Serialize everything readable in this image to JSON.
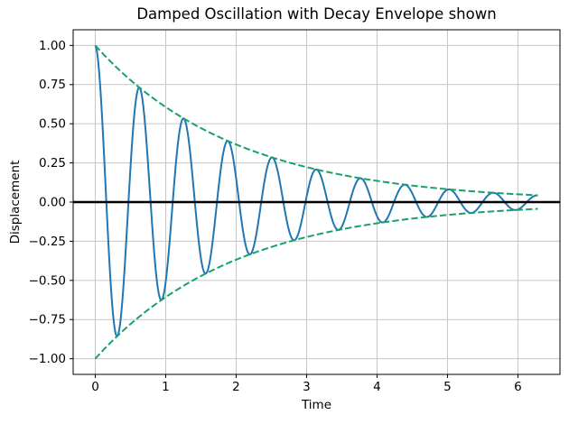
{
  "chart_data": {
    "type": "line",
    "title": "Damped Oscillation with Decay Envelope shown",
    "xlabel": "Time",
    "ylabel": "Displacement",
    "xlim": [
      -0.314,
      6.597
    ],
    "ylim": [
      -1.1,
      1.1
    ],
    "xticks": [
      0,
      1,
      2,
      3,
      4,
      5,
      6
    ],
    "yticks": [
      -1.0,
      -0.75,
      -0.5,
      -0.25,
      0.0,
      0.25,
      0.5,
      0.75,
      1.0
    ],
    "grid": true,
    "grid_color": "#c6c6c6",
    "spine_color": "#000000",
    "background": "#ffffff",
    "legend": "none",
    "series": [
      {
        "name": "damped-oscillation",
        "fn": "damped_cosine",
        "formula": "exp(-0.5*t)*cos(10*t)",
        "amplitude": 1.0,
        "decay_rate": 0.5,
        "angular_frequency": 10,
        "t_start": 0,
        "t_end": 6.2832,
        "color": "#1f77b4",
        "line_style": "solid",
        "line_width": 2,
        "key_points": [
          [
            0,
            1.0
          ],
          [
            0.3142,
            -0.8547
          ],
          [
            0.6283,
            0.7304
          ],
          [
            1.2566,
            0.5335
          ],
          [
            1.885,
            0.3897
          ],
          [
            2.5133,
            0.2846
          ],
          [
            3.1416,
            0.2079
          ],
          [
            3.7699,
            0.1518
          ],
          [
            4.3982,
            0.1109
          ],
          [
            5.0265,
            0.081
          ],
          [
            5.655,
            0.0592
          ],
          [
            6.2832,
            0.0432
          ]
        ]
      },
      {
        "name": "upper-envelope",
        "fn": "exponential_decay",
        "formula": "exp(-0.5*t)",
        "amplitude": 1.0,
        "decay_rate": 0.5,
        "t_start": 0,
        "t_end": 6.2832,
        "color": "#1aa06b",
        "line_style": "dashed",
        "line_width": 2,
        "key_points": [
          [
            0,
            1.0
          ],
          [
            1,
            0.6065
          ],
          [
            2,
            0.3679
          ],
          [
            3,
            0.2231
          ],
          [
            4,
            0.1353
          ],
          [
            5,
            0.0821
          ],
          [
            6,
            0.0498
          ],
          [
            6.2832,
            0.0432
          ]
        ]
      },
      {
        "name": "lower-envelope",
        "fn": "exponential_decay",
        "formula": "-exp(-0.5*t)",
        "amplitude": -1.0,
        "decay_rate": 0.5,
        "t_start": 0,
        "t_end": 6.2832,
        "color": "#1aa06b",
        "line_style": "dashed",
        "line_width": 2,
        "key_points": [
          [
            0,
            -1.0
          ],
          [
            1,
            -0.6065
          ],
          [
            2,
            -0.3679
          ],
          [
            3,
            -0.2231
          ],
          [
            4,
            -0.1353
          ],
          [
            5,
            -0.0821
          ],
          [
            6,
            -0.0498
          ],
          [
            6.2832,
            -0.0432
          ]
        ]
      },
      {
        "name": "zero-line",
        "fn": "constant",
        "formula": "0",
        "value": 0,
        "t_start": -0.314,
        "t_end": 6.597,
        "color": "#000000",
        "line_style": "solid",
        "line_width": 2.6
      }
    ]
  }
}
